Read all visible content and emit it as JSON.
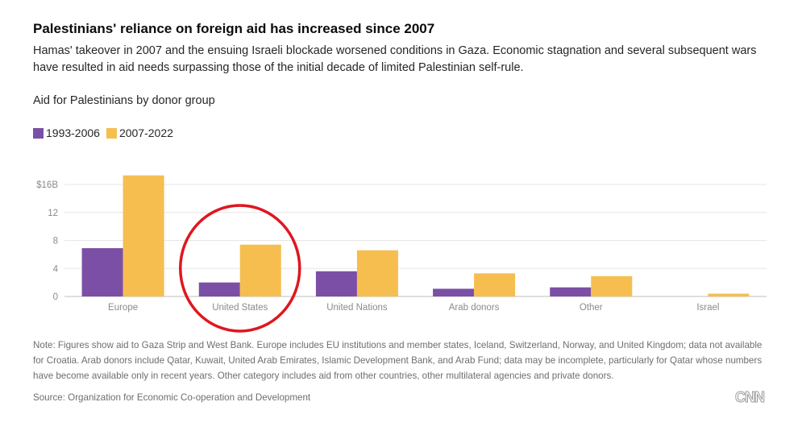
{
  "header": {
    "title": "Palestinians' reliance on foreign aid has increased since 2007",
    "subtitle": "Hamas' takeover in 2007 and the ensuing Israeli blockade worsened conditions in Gaza. Economic stagnation and several subsequent wars have resulted in aid needs surpassing those of the initial decade of limited Palestinian self-rule."
  },
  "chart_data": {
    "type": "bar",
    "title": "Aid for Palestinians by donor group",
    "categories": [
      "Europe",
      "United States",
      "United Nations",
      "Arab donors",
      "Other",
      "Israel"
    ],
    "series": [
      {
        "name": "1993-2006",
        "color": "#7b4fa6",
        "values": [
          6.9,
          2.0,
          3.6,
          1.1,
          1.3,
          0
        ]
      },
      {
        "name": "2007-2022",
        "color": "#f6be4f",
        "values": [
          17.3,
          7.4,
          6.6,
          3.3,
          2.9,
          0.4
        ]
      }
    ],
    "yticks": [
      {
        "value": 0,
        "label": "0"
      },
      {
        "value": 4,
        "label": "4"
      },
      {
        "value": 8,
        "label": "8"
      },
      {
        "value": 12,
        "label": "12"
      },
      {
        "value": 16,
        "label": "$16B"
      }
    ],
    "ylim": [
      0,
      16
    ],
    "grid": true,
    "legend_position": "top-left",
    "annotation": {
      "shape": "circle",
      "color": "#e0161f",
      "target_category": "United States"
    }
  },
  "footer": {
    "note": "Note: Figures show aid to Gaza Strip and West Bank. Europe includes EU institutions and member states, Iceland, Switzerland, Norway, and United Kingdom; data not available for Croatia. Arab donors include Qatar, Kuwait, United Arab Emirates, Islamic Development Bank, and Arab Fund; data may be incomplete, particularly for Qatar whose numbers have become available only in recent years. Other category includes aid from other countries, other multilateral agencies and private donors.",
    "source": "Source: Organization for Economic Co-operation and Development",
    "logo_text": "CNN"
  }
}
